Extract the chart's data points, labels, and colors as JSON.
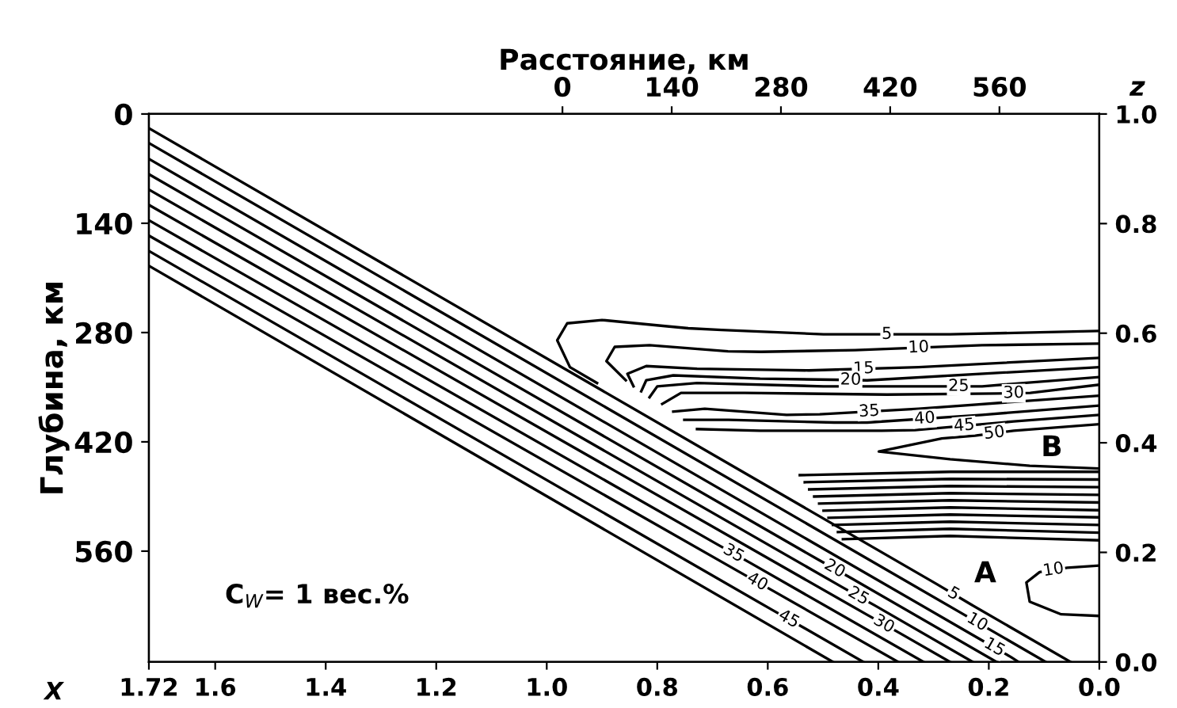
{
  "chart_data": {
    "type": "line",
    "xlabel": "X",
    "x2label": "Расстояние, км",
    "ylabel": "Глубина, км",
    "y2label": "z",
    "xlim": [
      1.72,
      0.0
    ],
    "xticks": [
      1.72,
      1.6,
      1.4,
      1.2,
      {
        "value": 1.0,
        "label": "1.0"
      },
      0.8,
      0.6,
      0.4,
      0.2,
      {
        "value": 0.0,
        "label": "0.0"
      }
    ],
    "x2lim": [
      -530,
      688
    ],
    "x2ticks": [
      0,
      140,
      280,
      420,
      560
    ],
    "ylim": [
      702,
      0
    ],
    "yticks": [
      0,
      140,
      280,
      420,
      560
    ],
    "y2lim": [
      0.0,
      1.0
    ],
    "y2ticks": [
      {
        "value": 0.0,
        "label": "0.0"
      },
      0.2,
      0.4,
      0.6,
      0.8,
      {
        "value": 1.0,
        "label": "1.0"
      }
    ],
    "marker": "none",
    "line_style": "solid",
    "series": [
      {
        "type": "line",
        "name": "5",
        "axis": "y2",
        "color": "#000000",
        "x": [
          1.72,
          0.294,
          0.234,
          0.052
        ],
        "values": [
          0.974,
          0.142,
          0.106,
          0.0
        ]
      },
      {
        "type": "line",
        "name": "10",
        "axis": "y2",
        "color": "#000000",
        "x": [
          1.72,
          0.251,
          0.191,
          0.097
        ],
        "values": [
          0.947,
          0.09,
          0.055,
          0.0
        ]
      },
      {
        "type": "line",
        "name": "15",
        "axis": "y2",
        "color": "#000000",
        "x": [
          1.72,
          0.22,
          0.16,
          0.146
        ],
        "values": [
          0.918,
          0.044,
          0.009,
          0.0
        ]
      },
      {
        "type": "line",
        "name": "20",
        "axis": "y2",
        "color": "#000000",
        "x": [
          1.72,
          0.509,
          0.449,
          0.186
        ],
        "values": [
          0.89,
          0.187,
          0.153,
          0.0
        ]
      },
      {
        "type": "line",
        "name": "25",
        "axis": "y2",
        "color": "#000000",
        "x": [
          1.72,
          0.466,
          0.406,
          0.229
        ],
        "values": [
          0.862,
          0.137,
          0.103,
          0.0
        ]
      },
      {
        "type": "line",
        "name": "30",
        "axis": "y2",
        "color": "#000000",
        "x": [
          1.72,
          0.42,
          0.36,
          0.27
        ],
        "values": [
          0.834,
          0.086,
          0.052,
          0.0
        ]
      },
      {
        "type": "line",
        "name": "35",
        "axis": "y2",
        "color": "#000000",
        "x": [
          1.72,
          0.692,
          0.632,
          0.318
        ],
        "values": [
          0.806,
          0.215,
          0.181,
          0.0
        ]
      },
      {
        "type": "line",
        "name": "40",
        "axis": "y2",
        "color": "#000000",
        "x": [
          1.72,
          0.649,
          0.589,
          0.364
        ],
        "values": [
          0.778,
          0.163,
          0.129,
          0.0
        ]
      },
      {
        "type": "line",
        "name": "45",
        "axis": "y2",
        "color": "#000000",
        "x": [
          1.72,
          0.592,
          0.532,
          0.427
        ],
        "values": [
          0.75,
          0.095,
          0.061,
          0.0
        ]
      },
      {
        "type": "line",
        "axis": "y2",
        "color": "#000000",
        "x": [
          1.72,
          0.482
        ],
        "values": [
          0.723,
          0.0
        ]
      },
      {
        "type": "line",
        "name": "5",
        "axis": "y2",
        "color": "#000000",
        "x": [
          0.0,
          0.27,
          0.499,
          0.684,
          0.744,
          0.786,
          0.9,
          0.963,
          0.981,
          0.958,
          0.909
        ],
        "values": [
          0.604,
          0.598,
          0.598,
          0.606,
          0.609,
          0.613,
          0.624,
          0.618,
          0.587,
          0.538,
          0.509
        ]
      },
      {
        "type": "line",
        "name": "10",
        "axis": "y2",
        "color": "#000000",
        "x": [
          0.0,
          0.212,
          0.442,
          0.612,
          0.672,
          0.814,
          0.877,
          0.892,
          0.857
        ],
        "values": [
          0.581,
          0.578,
          0.569,
          0.566,
          0.567,
          0.578,
          0.575,
          0.549,
          0.514
        ]
      },
      {
        "type": "line",
        "name": "15",
        "axis": "y2",
        "color": "#000000",
        "x": [
          0.0,
          0.327,
          0.526,
          0.586,
          0.728,
          0.82,
          0.854,
          0.843
        ],
        "values": [
          0.555,
          0.538,
          0.532,
          0.533,
          0.535,
          0.54,
          0.526,
          0.503
        ]
      },
      {
        "type": "line",
        "name": "20",
        "axis": "y2",
        "color": "#000000",
        "x": [
          0.0,
          0.42,
          0.48,
          0.614,
          0.771,
          0.82,
          0.829
        ],
        "values": [
          0.538,
          0.514,
          0.515,
          0.517,
          0.523,
          0.514,
          0.494
        ]
      },
      {
        "type": "line",
        "name": "25",
        "axis": "y2",
        "color": "#000000",
        "x": [
          0.0,
          0.212,
          0.297,
          0.357,
          0.499,
          0.728,
          0.8,
          0.814
        ],
        "values": [
          0.52,
          0.503,
          0.503,
          0.503,
          0.503,
          0.509,
          0.503,
          0.483
        ]
      },
      {
        "type": "line",
        "name": "30",
        "axis": "y2",
        "color": "#000000",
        "x": [
          0.0,
          0.125,
          0.185,
          0.384,
          0.642,
          0.757,
          0.791
        ],
        "values": [
          0.506,
          0.491,
          0.49,
          0.488,
          0.491,
          0.491,
          0.471
        ]
      },
      {
        "type": "line",
        "name": "35",
        "axis": "y2",
        "color": "#000000",
        "x": [
          0.0,
          0.327,
          0.506,
          0.566,
          0.714,
          0.771
        ],
        "values": [
          0.486,
          0.462,
          0.452,
          0.451,
          0.462,
          0.457
        ]
      },
      {
        "type": "line",
        "name": "40",
        "axis": "y2",
        "color": "#000000",
        "x": [
          0.0,
          0.212,
          0.42,
          0.48,
          0.671,
          0.751
        ],
        "values": [
          0.468,
          0.451,
          0.437,
          0.437,
          0.442,
          0.442
        ]
      },
      {
        "type": "line",
        "name": "45",
        "axis": "y2",
        "color": "#000000",
        "x": [
          0.0,
          0.155,
          0.334,
          0.394,
          0.614,
          0.728
        ],
        "values": [
          0.451,
          0.439,
          0.423,
          0.422,
          0.422,
          0.425
        ]
      },
      {
        "type": "line",
        "name": "50",
        "axis": "y2",
        "color": "#000000",
        "x": [
          0.0,
          0.155,
          0.225,
          0.285,
          0.399,
          0.27,
          0.126,
          0.0
        ],
        "values": [
          0.434,
          0.422,
          0.413,
          0.408,
          0.384,
          0.37,
          0.358,
          0.353
        ]
      },
      {
        "type": "line",
        "axis": "y2",
        "color": "#000000",
        "x": [
          0.542,
          0.27,
          0.0
        ],
        "values": [
          0.341,
          0.347,
          0.347
        ]
      },
      {
        "type": "line",
        "axis": "y2",
        "color": "#000000",
        "x": [
          0.533,
          0.27,
          0.0
        ],
        "values": [
          0.328,
          0.334,
          0.333
        ]
      },
      {
        "type": "line",
        "axis": "y2",
        "color": "#000000",
        "x": [
          0.525,
          0.27,
          0.0
        ],
        "values": [
          0.315,
          0.321,
          0.319
        ]
      },
      {
        "type": "line",
        "axis": "y2",
        "color": "#000000",
        "x": [
          0.516,
          0.27,
          0.0
        ],
        "values": [
          0.302,
          0.308,
          0.305
        ]
      },
      {
        "type": "line",
        "axis": "y2",
        "color": "#000000",
        "x": [
          0.507,
          0.27,
          0.0
        ],
        "values": [
          0.289,
          0.295,
          0.291
        ]
      },
      {
        "type": "line",
        "axis": "y2",
        "color": "#000000",
        "x": [
          0.499,
          0.27,
          0.0
        ],
        "values": [
          0.276,
          0.282,
          0.277
        ]
      },
      {
        "type": "line",
        "axis": "y2",
        "color": "#000000",
        "x": [
          0.49,
          0.27,
          0.0
        ],
        "values": [
          0.263,
          0.269,
          0.264
        ]
      },
      {
        "type": "line",
        "axis": "y2",
        "color": "#000000",
        "x": [
          0.482,
          0.27,
          0.0
        ],
        "values": [
          0.25,
          0.256,
          0.25
        ]
      },
      {
        "type": "line",
        "axis": "y2",
        "color": "#000000",
        "x": [
          0.473,
          0.27,
          0.0
        ],
        "values": [
          0.237,
          0.243,
          0.236
        ]
      },
      {
        "type": "line",
        "axis": "y2",
        "color": "#000000",
        "x": [
          0.464,
          0.27,
          0.0
        ],
        "values": [
          0.224,
          0.23,
          0.222
        ]
      },
      {
        "type": "line",
        "name": "10",
        "axis": "y2",
        "color": "#000000",
        "x": [
          0.0,
          0.058,
          0.108,
          0.132,
          0.126,
          0.069,
          0.0
        ],
        "values": [
          0.176,
          0.172,
          0.164,
          0.145,
          0.11,
          0.087,
          0.084
        ]
      }
    ],
    "annotations": [
      "A",
      "B",
      "C$_{W}$= 1 вес.%"
    ]
  }
}
